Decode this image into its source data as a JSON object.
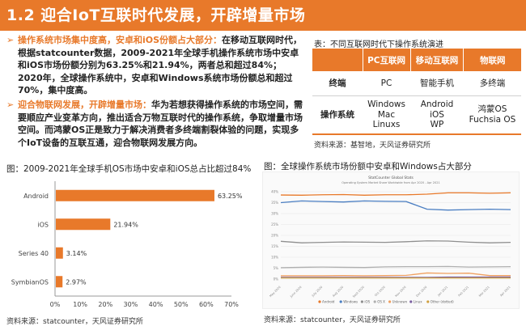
{
  "title": "1.2 迎合IoT互联时代发展，开辟增量市场",
  "bullets": [
    {
      "heading": "操作系统市场集中度高，安卓和iOS份额占大部分：",
      "body": "在移动互联网时代，根据statcounter数据，2009-2021年全球手机操作系统市场中安卓和iOS市场份额分别为63.25%和21.94%，两者总和超过84%；2020年，全球操作系统中，安卓和Windows系统市场份额总和超过70%，集中度高。"
    },
    {
      "heading": "迎合物联网发展，开辟增量市场：",
      "body": "华为若想获得操作系统的市场空间，需要顺应产业变革方向，推出适合万物互联时代的操作系统，争取增量市场空间。而鸿蒙OS正是致力于解决消费者多终端割裂体验的问题，实现多个IoT设备的互联互通，迎合物联网发展方向。"
    }
  ],
  "table": {
    "caption": "表：不同互联网时代下操作系统演进",
    "headers": [
      "",
      "PC互联网",
      "移动互联网",
      "物联网"
    ],
    "rows": [
      {
        "label": "终端",
        "cells": [
          "PC",
          "智能手机",
          "多终端"
        ]
      },
      {
        "label": "操作系统",
        "cells": [
          [
            "Windows",
            "Mac",
            "Linuxs"
          ],
          [
            "Android",
            "iOS",
            "WP"
          ],
          [
            "鸿蒙OS",
            "Fuchsia OS"
          ]
        ]
      }
    ],
    "source": "资料来源：基智地，天风证券研究所"
  },
  "bar_chart_caption": "图：2009-2021年全球手机OS市场中安卓和iOS总占比超过84%",
  "bar_chart_source": "资料来源：statcounter，天风证券研究所",
  "line_chart_caption": "图：全球操作系统市场份额中安卓和Windows占大部分",
  "line_chart_source": "资料来源：statcounter，天风证券研究所",
  "colors": {
    "accent": "#e8792a"
  },
  "chart_data": [
    {
      "type": "bar",
      "orientation": "horizontal",
      "categories": [
        "Android",
        "iOS",
        "Series 40",
        "SymbianOS"
      ],
      "values": [
        63.25,
        21.94,
        3.14,
        2.97
      ],
      "value_labels": [
        "63.25%",
        "21.94%",
        "3.14%",
        "2.97%"
      ],
      "xlim": [
        0,
        70
      ],
      "xticks": [
        "0%",
        "10%",
        "20%",
        "30%",
        "40%",
        "50%",
        "60%",
        "70%"
      ],
      "color": "#e8792a"
    },
    {
      "type": "line",
      "title": "StatCounter Global Stats",
      "subtitle": "Operating System Market Share Worldwide from Apr 2020 - Apr 2021",
      "yticks": [
        "40%",
        "35%",
        "30%",
        "25%",
        "20%",
        "15%",
        "10%",
        "5%",
        "0%"
      ],
      "ylim": [
        0,
        40
      ],
      "x": [
        "May 2020",
        "June 2020",
        "July 2020",
        "Aug 2020",
        "Sept 2020",
        "Oct 2020",
        "Nov 2020",
        "Dec 2020",
        "Jan 2021",
        "Feb 2021",
        "Mar 2021",
        "Apr 2021"
      ],
      "series": [
        {
          "name": "Android",
          "color": "#e8792a",
          "values": [
            38.5,
            38.4,
            38.6,
            38.7,
            38.4,
            38.6,
            38.6,
            38.9,
            39.5,
            39.5,
            39.3,
            39.5
          ]
        },
        {
          "name": "Windows",
          "color": "#4a7ec2",
          "values": [
            35.0,
            35.8,
            35.5,
            35.3,
            35.8,
            35.6,
            35.5,
            32.0,
            31.6,
            31.8,
            32.0,
            31.8
          ]
        },
        {
          "name": "iOS",
          "color": "#8f8f8f",
          "values": [
            17.3,
            16.6,
            16.8,
            17.0,
            16.9,
            16.8,
            17.1,
            17.5,
            17.4,
            16.9,
            16.6,
            16.8
          ]
        },
        {
          "name": "OS X",
          "color": "#b0b0b0",
          "values": [
            5.2,
            5.4,
            5.5,
            5.4,
            5.3,
            5.6,
            5.7,
            5.7,
            5.8,
            5.5,
            5.6,
            5.7
          ]
        },
        {
          "name": "Unknown",
          "color": "#f0a060",
          "values": [
            1.5,
            1.5,
            1.5,
            1.6,
            1.5,
            1.6,
            1.7,
            2.8,
            2.6,
            2.7,
            1.6,
            1.6
          ]
        },
        {
          "name": "Linux",
          "color": "#7a5fa0",
          "values": [
            0.8,
            0.8,
            0.8,
            0.8,
            0.8,
            0.8,
            0.8,
            0.8,
            0.9,
            0.9,
            0.9,
            0.9
          ]
        },
        {
          "name": "Other (dotted)",
          "color": "#d0a040",
          "values": [
            0.5,
            0.5,
            0.5,
            0.5,
            0.5,
            0.5,
            0.5,
            0.5,
            0.5,
            0.5,
            0.5,
            0.5
          ]
        }
      ]
    }
  ]
}
